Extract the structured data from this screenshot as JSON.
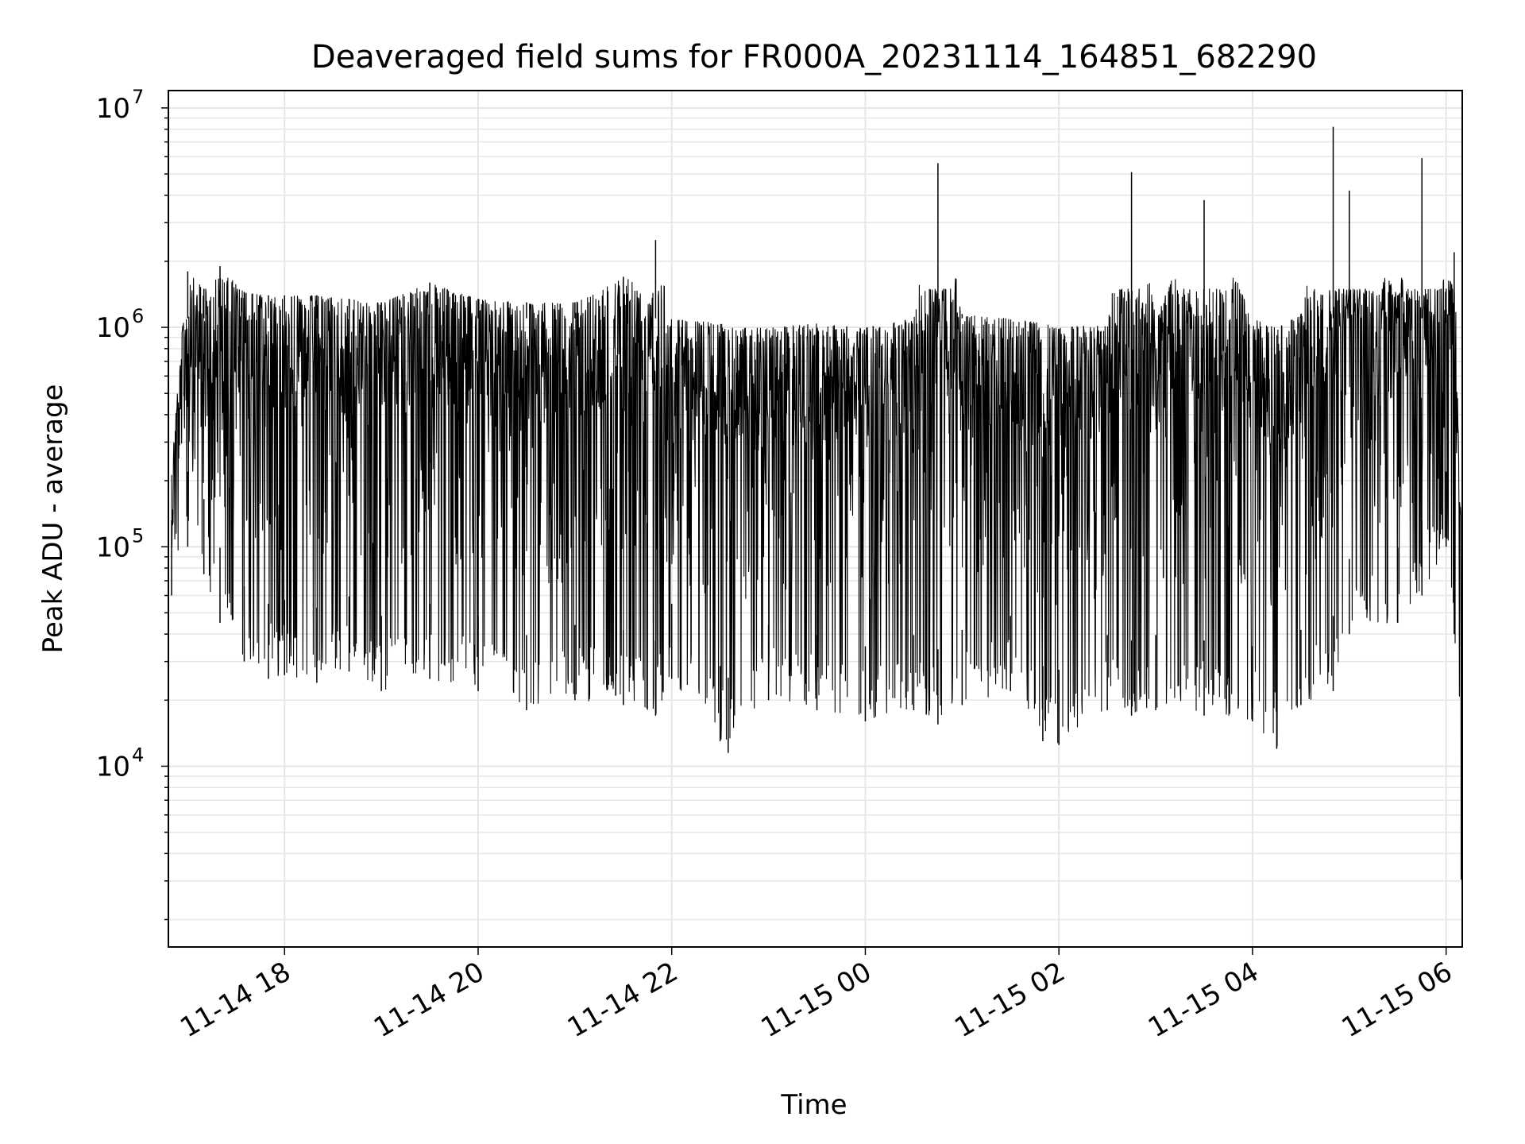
{
  "chart_data": {
    "type": "line",
    "title": "Deaveraged field sums for FR000A_20231114_164851_682290",
    "xlabel": "Time",
    "ylabel": "Peak ADU - average",
    "yscale": "log",
    "xlim": [
      "2023-11-14 16:48",
      "2023-11-15 06:10"
    ],
    "ylim": [
      1500,
      12000000
    ],
    "grid": "on (major and minor)",
    "line_color": "#000000",
    "x_ticks": [
      "11-14 18",
      "11-14 20",
      "11-14 22",
      "11-15 00",
      "11-15 02",
      "11-15 04",
      "11-15 06"
    ],
    "y_ticks": [
      {
        "base": "10",
        "exp": "4"
      },
      {
        "base": "10",
        "exp": "5"
      },
      {
        "base": "10",
        "exp": "6"
      },
      {
        "base": "10",
        "exp": "7"
      }
    ],
    "series": [
      {
        "x": [
          "2023-11-14 16:50",
          "2023-11-14 17:00",
          "2023-11-14 17:10",
          "2023-11-14 17:20",
          "2023-11-14 17:35",
          "2023-11-14 17:50",
          "2023-11-14 18:00",
          "2023-11-14 18:20",
          "2023-11-14 18:40",
          "2023-11-14 19:00",
          "2023-11-14 19:30",
          "2023-11-14 20:00",
          "2023-11-14 20:30",
          "2023-11-14 21:00",
          "2023-11-14 21:30",
          "2023-11-14 21:50",
          "2023-11-14 22:00",
          "2023-11-14 22:30",
          "2023-11-14 22:35",
          "2023-11-14 23:00",
          "2023-11-14 23:30",
          "2023-11-15 00:00",
          "2023-11-15 00:30",
          "2023-11-15 00:45",
          "2023-11-15 01:00",
          "2023-11-15 01:30",
          "2023-11-15 01:50",
          "2023-11-15 02:00",
          "2023-11-15 02:30",
          "2023-11-15 02:45",
          "2023-11-15 03:00",
          "2023-11-15 03:30",
          "2023-11-15 04:00",
          "2023-11-15 04:15",
          "2023-11-15 04:30",
          "2023-11-15 04:50",
          "2023-11-15 05:00",
          "2023-11-15 05:30",
          "2023-11-15 05:45",
          "2023-11-15 06:00",
          "2023-11-15 06:05",
          "2023-11-15 06:10"
        ],
        "y_max": [
          300000,
          1800000,
          1500000,
          1900000,
          1450000,
          1400000,
          1400000,
          1400000,
          1350000,
          1300000,
          1600000,
          1350000,
          1300000,
          1300000,
          1700000,
          2500000,
          1100000,
          1050000,
          1000000,
          1000000,
          1050000,
          1000000,
          1100000,
          5600000,
          1150000,
          1100000,
          1050000,
          1000000,
          1050000,
          5100000,
          1100000,
          3800000,
          1100000,
          1000000,
          1150000,
          8200000,
          4200000,
          1400000,
          5900000,
          1500000,
          2200000,
          100000
        ],
        "y_min": [
          60000,
          100000,
          75000,
          45000,
          30000,
          25000,
          26000,
          24000,
          27000,
          22000,
          25000,
          22000,
          18000,
          20000,
          19000,
          17000,
          25000,
          13000,
          11500,
          20000,
          18000,
          16000,
          18000,
          15500,
          19000,
          22000,
          13000,
          12500,
          18000,
          17000,
          18000,
          17000,
          16000,
          12000,
          19000,
          22000,
          40000,
          45000,
          60000,
          100000,
          40000,
          1800
        ]
      }
    ]
  }
}
